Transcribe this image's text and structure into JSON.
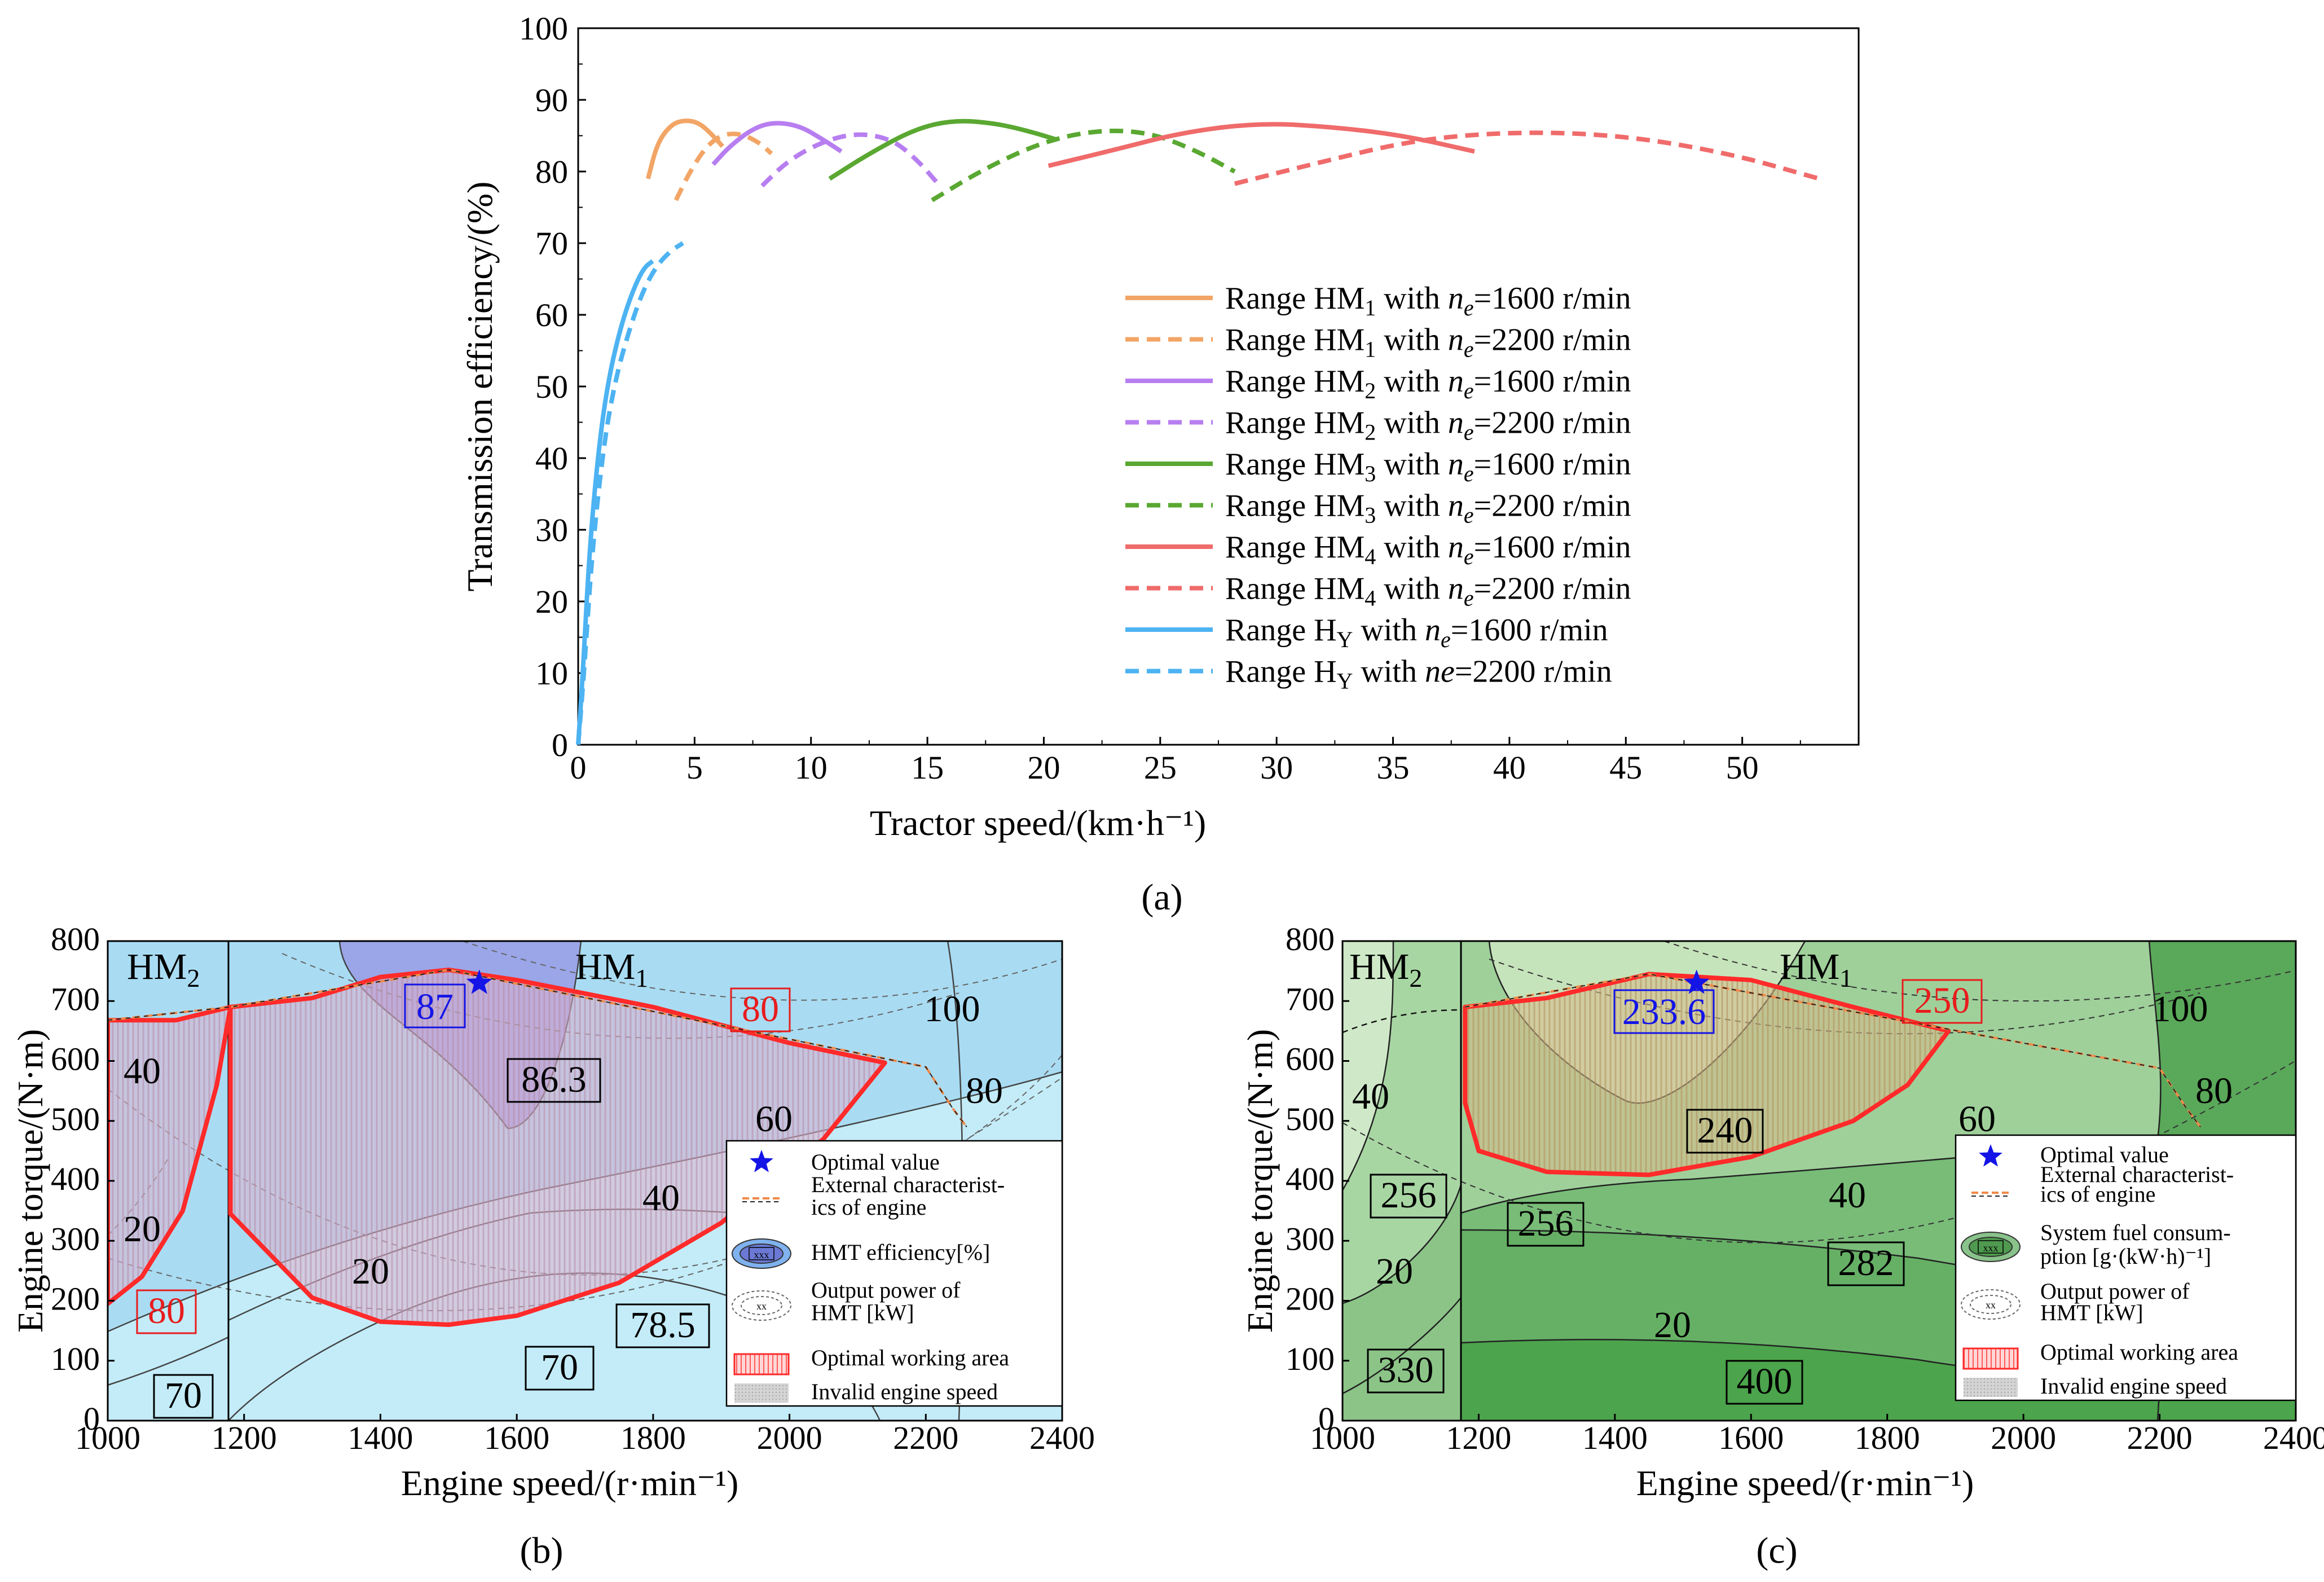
{
  "panel_a": {
    "caption": "(a)",
    "xlabel": "Tractor speed/(km·h⁻¹)",
    "ylabel": "Transmission efficiency/(%)",
    "xticks": [
      "0",
      "5",
      "10",
      "15",
      "20",
      "25",
      "30",
      "35",
      "40",
      "45",
      "50"
    ],
    "yticks": [
      "0",
      "10",
      "20",
      "30",
      "40",
      "50",
      "60",
      "70",
      "80",
      "90",
      "100"
    ],
    "legend": [
      {
        "pre": "Range HM",
        "sub": "1",
        "post": " with ",
        "ital": "n",
        "isub": "e",
        "tail": "=1600 r/min",
        "color": "#f2a566",
        "dash": false
      },
      {
        "pre": "Range HM",
        "sub": "1",
        "post": " with ",
        "ital": "n",
        "isub": "e",
        "tail": "=2200 r/min",
        "color": "#f2a566",
        "dash": true
      },
      {
        "pre": "Range HM",
        "sub": "2",
        "post": " with ",
        "ital": "n",
        "isub": "e",
        "tail": "=1600 r/min",
        "color": "#b77ef0",
        "dash": false
      },
      {
        "pre": "Range HM",
        "sub": "2",
        "post": " with ",
        "ital": "n",
        "isub": "e",
        "tail": "=2200 r/min",
        "color": "#b77ef0",
        "dash": true
      },
      {
        "pre": "Range HM",
        "sub": "3",
        "post": " with ",
        "ital": "n",
        "isub": "e",
        "tail": "=1600 r/min",
        "color": "#5aa832",
        "dash": false
      },
      {
        "pre": "Range HM",
        "sub": "3",
        "post": " with ",
        "ital": "n",
        "isub": "e",
        "tail": "=2200 r/min",
        "color": "#5aa832",
        "dash": true
      },
      {
        "pre": "Range HM",
        "sub": "4",
        "post": " with ",
        "ital": "n",
        "isub": "e",
        "tail": "=1600 r/min",
        "color": "#f06b6b",
        "dash": false
      },
      {
        "pre": "Range HM",
        "sub": "4",
        "post": " with ",
        "ital": "n",
        "isub": "e",
        "tail": "=2200 r/min",
        "color": "#f06b6b",
        "dash": true
      },
      {
        "pre": "Range H",
        "sub": "Y",
        "post": " with ",
        "ital": "n",
        "isub": "e",
        "tail": "=1600 r/min",
        "color": "#4db3f2",
        "dash": false
      },
      {
        "pre": "Range H",
        "sub": "Y",
        "post": " with ",
        "ital": "ne",
        "isub": "",
        "tail": "=2200 r/min",
        "color": "#4db3f2",
        "dash": true
      }
    ]
  },
  "panel_b": {
    "caption": "(b)",
    "xlabel": "Engine speed/(r·min⁻¹)",
    "ylabel": "Engine torque/(N·m)",
    "xticks": [
      "1000",
      "1200",
      "1400",
      "1600",
      "1800",
      "2000",
      "2200",
      "2400"
    ],
    "yticks": [
      "0",
      "100",
      "200",
      "300",
      "400",
      "500",
      "600",
      "700",
      "800"
    ],
    "region_left": {
      "pre": "HM",
      "sub": "2"
    },
    "region_right": {
      "pre": "HM",
      "sub": "1"
    },
    "optimum_label": "87",
    "boxed_labels": [
      "86.3",
      "78.5",
      "70",
      "70",
      "80",
      "80"
    ],
    "power_labels": [
      "100",
      "80",
      "60",
      "40",
      "20",
      "40",
      "20"
    ],
    "legend": [
      "Optimal value",
      "External characterist-",
      "ics of engine",
      "HMT efficiency[%]",
      "Output power of",
      "HMT [kW]",
      "Optimal working area",
      "Invalid engine speed"
    ],
    "icon_text": "xxx",
    "icon_text2": "xx"
  },
  "panel_c": {
    "caption": "(c)",
    "xlabel": "Engine speed/(r·min⁻¹)",
    "ylabel": "Engine torque/(N·m)",
    "xticks": [
      "1000",
      "1200",
      "1400",
      "1600",
      "1800",
      "2000",
      "2200",
      "2400"
    ],
    "yticks": [
      "0",
      "100",
      "200",
      "300",
      "400",
      "500",
      "600",
      "700",
      "800"
    ],
    "region_left": {
      "pre": "HM",
      "sub": "2"
    },
    "region_right": {
      "pre": "HM",
      "sub": "1"
    },
    "optimum_label": "233.6",
    "boxed_labels": [
      "250",
      "240",
      "256",
      "256",
      "282",
      "330",
      "400"
    ],
    "power_labels": [
      "100",
      "80",
      "60",
      "40",
      "20",
      "40",
      "20"
    ],
    "legend": [
      "Optimal value",
      "External characterist-",
      "ics of engine",
      "System fuel consum-",
      "ption [g·(kW·h)⁻¹]",
      "Output power of",
      "HMT [kW]",
      "Optimal working area",
      "Invalid engine speed"
    ],
    "icon_text": "xxx",
    "icon_text2": "xx"
  },
  "chart_data": [
    {
      "type": "line",
      "title": "",
      "xlabel": "Tractor speed/(km·h⁻¹)",
      "ylabel": "Transmission efficiency/(%)",
      "xlim": [
        0,
        55
      ],
      "ylim": [
        0,
        100
      ],
      "grid": false,
      "legend_position": "right",
      "series": [
        {
          "name": "Range HM1 with ne=1600 r/min",
          "color": "#f2a566",
          "dash": false,
          "points": [
            [
              3.0,
              79
            ],
            [
              3.4,
              84
            ],
            [
              4.0,
              86.6
            ],
            [
              4.6,
              87.2
            ],
            [
              5.2,
              86.8
            ],
            [
              5.8,
              85
            ],
            [
              6.2,
              83.5
            ]
          ]
        },
        {
          "name": "Range HM1 with ne=2200 r/min",
          "color": "#f2a566",
          "dash": true,
          "points": [
            [
              4.2,
              76
            ],
            [
              4.8,
              80
            ],
            [
              5.5,
              83.5
            ],
            [
              6.2,
              85.2
            ],
            [
              7.0,
              85.3
            ],
            [
              7.8,
              84
            ],
            [
              8.3,
              82.5
            ]
          ]
        },
        {
          "name": "Range HM2 with ne=1600 r/min",
          "color": "#b77ef0",
          "dash": false,
          "points": [
            [
              5.8,
              81
            ],
            [
              6.5,
              83.5
            ],
            [
              7.5,
              86
            ],
            [
              8.4,
              86.9
            ],
            [
              9.5,
              86.4
            ],
            [
              10.5,
              84.5
            ],
            [
              11.3,
              82.8
            ]
          ]
        },
        {
          "name": "Range HM2 with ne=2200 r/min",
          "color": "#b77ef0",
          "dash": true,
          "points": [
            [
              7.9,
              78
            ],
            [
              9,
              81.5
            ],
            [
              10.5,
              84.2
            ],
            [
              12,
              85.4
            ],
            [
              13.5,
              84.5
            ],
            [
              14.6,
              81.5
            ],
            [
              15.4,
              78.5
            ]
          ]
        },
        {
          "name": "Range HM3 with ne=1600 r/min",
          "color": "#5aa832",
          "dash": false,
          "points": [
            [
              10.8,
              79
            ],
            [
              12.5,
              82.5
            ],
            [
              14.5,
              86
            ],
            [
              16.2,
              87.2
            ],
            [
              18,
              86.7
            ],
            [
              19.5,
              85.5
            ],
            [
              20.5,
              84.5
            ]
          ]
        },
        {
          "name": "Range HM3 with ne=2200 r/min",
          "color": "#5aa832",
          "dash": true,
          "points": [
            [
              15.2,
              76
            ],
            [
              17.5,
              80.5
            ],
            [
              20,
              84.2
            ],
            [
              22.3,
              85.8
            ],
            [
              24.5,
              85.5
            ],
            [
              26.5,
              83
            ],
            [
              28.2,
              80
            ]
          ]
        },
        {
          "name": "Range HM4 with ne=1600 r/min",
          "color": "#f06b6b",
          "dash": false,
          "points": [
            [
              20.2,
              80.8
            ],
            [
              23,
              83
            ],
            [
              26,
              85.5
            ],
            [
              29.3,
              86.8
            ],
            [
              32.5,
              86.2
            ],
            [
              35.5,
              85
            ],
            [
              38.5,
              82.8
            ]
          ]
        },
        {
          "name": "Range HM4 with ne=2200 r/min",
          "color": "#f06b6b",
          "dash": true,
          "points": [
            [
              28.2,
              78.3
            ],
            [
              31.5,
              81
            ],
            [
              36,
              84.5
            ],
            [
              40.5,
              85.6
            ],
            [
              45,
              85
            ],
            [
              49.5,
              82.5
            ],
            [
              53.3,
              79
            ]
          ]
        },
        {
          "name": "Range HY with ne=1600 r/min",
          "color": "#4db3f2",
          "dash": false,
          "points": [
            [
              0,
              0
            ],
            [
              0.2,
              10
            ],
            [
              0.5,
              28
            ],
            [
              0.9,
              42
            ],
            [
              1.3,
              51
            ],
            [
              1.8,
              58
            ],
            [
              2.3,
              63
            ],
            [
              2.8,
              66.5
            ],
            [
              3.2,
              67.5
            ]
          ]
        },
        {
          "name": "Range HY with ne=2200 r/min",
          "color": "#4db3f2",
          "dash": true,
          "points": [
            [
              0,
              0
            ],
            [
              0.25,
              10
            ],
            [
              0.6,
              27
            ],
            [
              1.1,
              42
            ],
            [
              1.6,
              51
            ],
            [
              2.2,
              58
            ],
            [
              2.8,
              63.5
            ],
            [
              3.4,
              67
            ],
            [
              4.0,
              69
            ],
            [
              4.5,
              70
            ]
          ]
        }
      ]
    },
    {
      "type": "contour",
      "title": "",
      "xlabel": "Engine speed/(r·min⁻¹)",
      "ylabel": "Engine torque/(N·m)",
      "xlim": [
        1000,
        2400
      ],
      "ylim": [
        0,
        800
      ],
      "quantity": "HMT efficiency[%]",
      "optimal_point": {
        "x": 1545,
        "y": 730,
        "value": 87
      },
      "efficiency_contours": [
        86.3,
        80,
        78.5,
        70
      ],
      "power_contours_kW": [
        20,
        40,
        60,
        80,
        100
      ],
      "range_split_speed": 1180,
      "optimal_area_HM1": [
        [
          1180,
          690
        ],
        [
          1300,
          705
        ],
        [
          1400,
          740
        ],
        [
          1500,
          752
        ],
        [
          1600,
          735
        ],
        [
          1800,
          690
        ],
        [
          2000,
          630
        ],
        [
          2140,
          597
        ],
        [
          2050,
          470
        ],
        [
          1900,
          330
        ],
        [
          1750,
          230
        ],
        [
          1600,
          175
        ],
        [
          1500,
          160
        ],
        [
          1400,
          165
        ],
        [
          1300,
          205
        ],
        [
          1180,
          345
        ]
      ],
      "optimal_area_HM2": [
        [
          1000,
          668
        ],
        [
          1100,
          668
        ],
        [
          1180,
          690
        ],
        [
          1160,
          560
        ],
        [
          1110,
          350
        ],
        [
          1050,
          240
        ],
        [
          1000,
          195
        ]
      ],
      "external_characteristic": [
        [
          1000,
          668
        ],
        [
          1180,
          690
        ],
        [
          1500,
          752
        ],
        [
          2200,
          590
        ],
        [
          2240,
          520
        ],
        [
          2260,
          490
        ]
      ]
    },
    {
      "type": "contour",
      "title": "",
      "xlabel": "Engine speed/(r·min⁻¹)",
      "ylabel": "Engine torque/(N·m)",
      "xlim": [
        1000,
        2400
      ],
      "ylim": [
        0,
        800
      ],
      "quantity": "System fuel consumption [g·(kW·h)⁻¹]",
      "optimal_point": {
        "x": 1520,
        "y": 730,
        "value": 233.6
      },
      "fuel_contours": [
        240,
        250,
        256,
        282,
        330,
        400
      ],
      "power_contours_kW": [
        20,
        40,
        60,
        80,
        100
      ],
      "range_split_speed": 1180,
      "optimal_area": [
        [
          1180,
          690
        ],
        [
          1300,
          705
        ],
        [
          1450,
          745
        ],
        [
          1600,
          735
        ],
        [
          1750,
          690
        ],
        [
          1890,
          650
        ],
        [
          1830,
          560
        ],
        [
          1750,
          500
        ],
        [
          1600,
          440
        ],
        [
          1450,
          410
        ],
        [
          1300,
          415
        ],
        [
          1200,
          450
        ],
        [
          1180,
          530
        ]
      ],
      "external_characteristic": [
        [
          1180,
          690
        ],
        [
          1450,
          745
        ],
        [
          2200,
          588
        ],
        [
          2240,
          520
        ],
        [
          2260,
          490
        ]
      ]
    }
  ]
}
